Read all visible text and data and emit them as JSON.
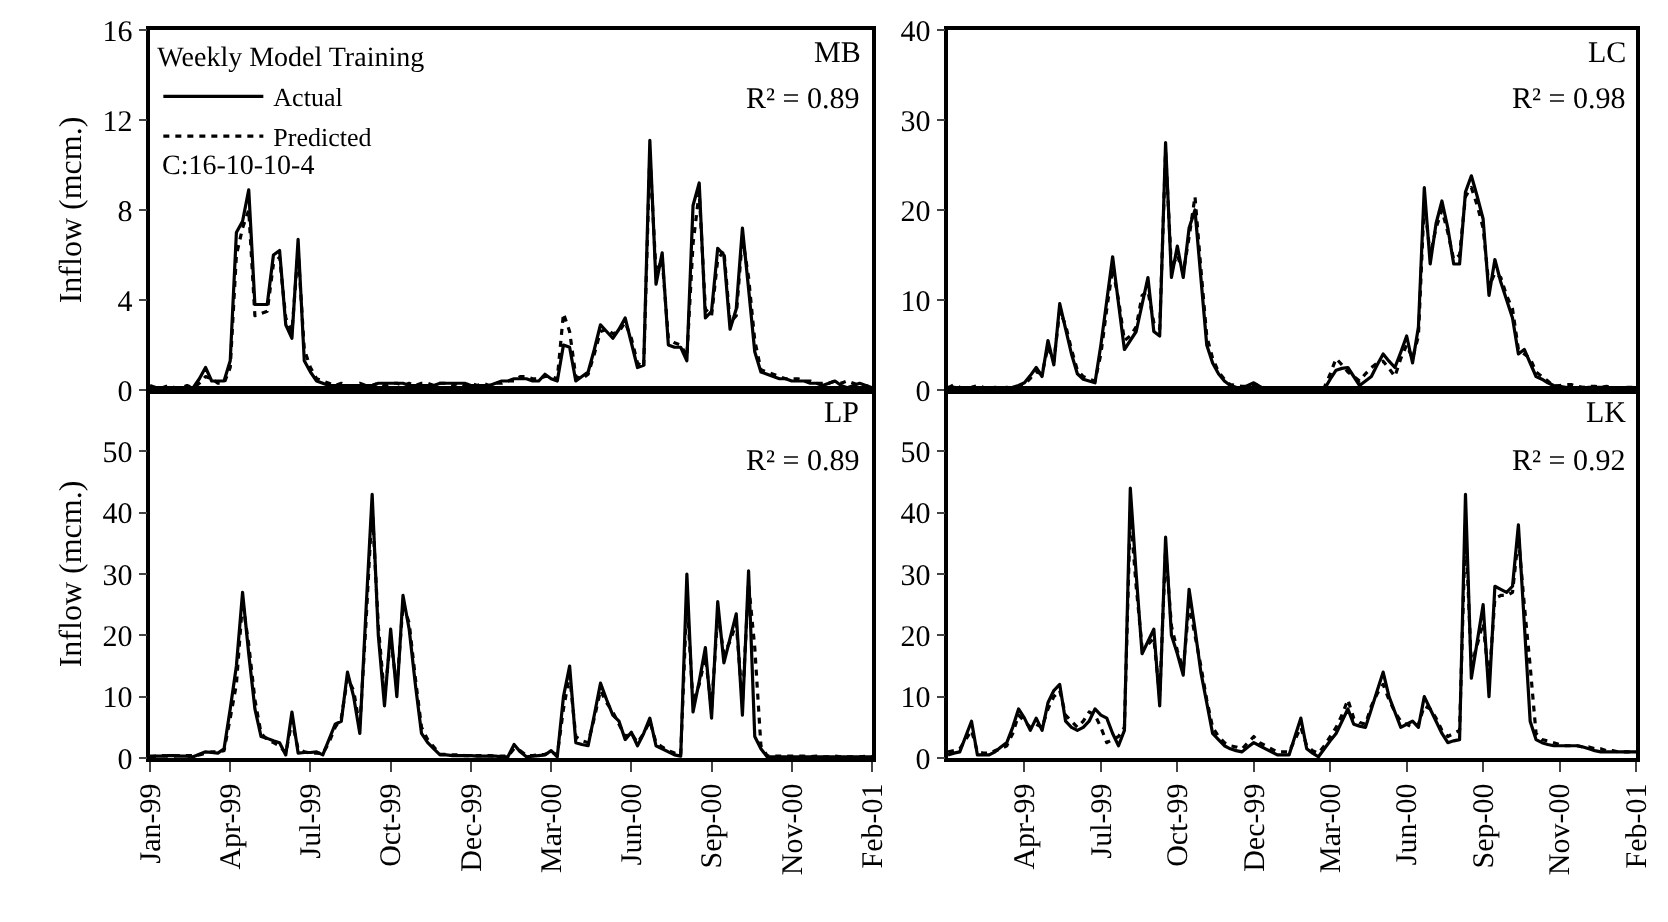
{
  "chart_data": [
    {
      "type": "line",
      "ylabel": "Inflow (mcm.)",
      "legend_title": "Weekly Model Training",
      "legend": "top left",
      "annotations": [
        "MB",
        "R² = 0.89",
        "C:16-10-10-4"
      ],
      "tick_labels": "y",
      "ylim": [
        0,
        16
      ],
      "yticks": [
        0,
        4,
        8,
        12,
        16
      ],
      "categories": [
        null,
        null,
        null,
        null,
        null,
        null,
        null,
        null,
        null,
        null,
        null,
        null,
        null,
        null,
        null,
        null,
        null,
        null,
        null,
        null,
        null,
        null,
        null,
        null,
        null,
        null,
        null,
        null,
        null,
        null,
        null,
        null,
        null,
        null,
        null,
        null,
        null,
        null,
        null,
        null,
        null,
        null,
        null,
        null,
        null,
        null,
        null,
        null,
        null,
        null,
        null,
        null,
        null,
        null,
        null,
        null,
        null,
        null,
        null,
        null,
        null,
        null,
        null,
        null,
        null,
        null,
        null,
        null,
        null,
        null,
        null,
        null,
        null,
        null,
        null,
        null,
        null,
        null,
        null,
        null,
        null,
        null,
        null,
        null,
        null,
        null,
        null,
        null,
        null,
        null,
        null,
        null,
        null,
        null,
        null,
        null,
        null,
        null,
        null,
        null,
        null,
        null,
        null,
        null,
        null,
        null,
        null,
        null,
        null,
        null,
        null,
        null,
        null,
        null,
        null,
        null,
        null,
        null
      ],
      "series": [
        {
          "name": "Actual",
          "color": "#000000",
          "line_style": "solid",
          "values": [
            0.1,
            0.1,
            0.1,
            0.1,
            0.1,
            0.1,
            0.1,
            0.1,
            0.5,
            1.0,
            0.4,
            0.4,
            0.4,
            1.3,
            7.0,
            7.5,
            8.9,
            3.8,
            3.8,
            3.8,
            6.0,
            6.2,
            2.9,
            2.3,
            6.7,
            1.3,
            0.8,
            0.4,
            0.3,
            0.2,
            0.2,
            0.2,
            0.2,
            0.2,
            0.2,
            0.2,
            0.2,
            0.3,
            0.3,
            0.3,
            0.3,
            0.3,
            0.2,
            0.2,
            0.2,
            0.2,
            0.2,
            0.3,
            0.3,
            0.3,
            0.3,
            0.3,
            0.2,
            0.2,
            0.2,
            0.2,
            0.3,
            0.4,
            0.4,
            0.5,
            0.5,
            0.5,
            0.4,
            0.4,
            0.7,
            0.5,
            0.4,
            2.0,
            1.9,
            0.4,
            0.6,
            0.8,
            1.8,
            2.9,
            2.6,
            2.3,
            2.7,
            3.2,
            2.1,
            1.0,
            1.1,
            11.1,
            4.7,
            6.1,
            2.0,
            1.9,
            1.9,
            1.3,
            8.2,
            9.2,
            3.2,
            3.5,
            6.3,
            6.0,
            2.7,
            3.6,
            7.2,
            4.5,
            1.7,
            0.8,
            0.7,
            0.6,
            0.5,
            0.5,
            0.4,
            0.4,
            0.4,
            0.3,
            0.3,
            0.2,
            0.3,
            0.4,
            0.2,
            0.1,
            0.2,
            0.3,
            0.2,
            0.1
          ]
        },
        {
          "name": "Predicted",
          "color": "#000000",
          "line_style": "dotted",
          "values": [
            0.2,
            0.1,
            0.1,
            0.2,
            0.1,
            0.1,
            0.2,
            0.1,
            0.3,
            0.6,
            0.5,
            0.3,
            0.3,
            1.0,
            6.0,
            7.2,
            8.0,
            3.3,
            3.4,
            3.5,
            5.6,
            5.9,
            3.2,
            2.6,
            6.2,
            1.8,
            1.0,
            0.5,
            0.4,
            0.3,
            0.2,
            0.3,
            0.2,
            0.2,
            0.3,
            0.2,
            0.2,
            0.3,
            0.2,
            0.3,
            0.3,
            0.2,
            0.3,
            0.2,
            0.3,
            0.3,
            0.2,
            0.3,
            0.3,
            0.2,
            0.3,
            0.2,
            0.3,
            0.2,
            0.3,
            0.2,
            0.3,
            0.3,
            0.4,
            0.4,
            0.6,
            0.6,
            0.5,
            0.5,
            0.6,
            0.6,
            0.5,
            3.4,
            2.6,
            0.6,
            0.5,
            0.7,
            1.6,
            2.6,
            2.7,
            2.5,
            2.6,
            3.0,
            2.3,
            1.2,
            1.0,
            10.5,
            5.2,
            5.8,
            2.3,
            2.1,
            2.0,
            1.5,
            6.5,
            8.8,
            3.6,
            3.3,
            5.8,
            6.2,
            3.0,
            3.3,
            6.8,
            5.0,
            2.2,
            0.9,
            0.8,
            0.7,
            0.6,
            0.5,
            0.5,
            0.5,
            0.4,
            0.4,
            0.3,
            0.3,
            0.3,
            0.4,
            0.3,
            0.4,
            0.3,
            0.2,
            0.2,
            0.1
          ]
        }
      ]
    },
    {
      "type": "line",
      "annotations": [
        "LC",
        "R² = 0.98"
      ],
      "tick_labels": "y",
      "ylim": [
        0,
        40
      ],
      "yticks": [
        0,
        10,
        20,
        30,
        40
      ],
      "categories": [
        null,
        null,
        null,
        null,
        null,
        null,
        null,
        null,
        null,
        null,
        null,
        null,
        null,
        null,
        null,
        null,
        null,
        null,
        null,
        null,
        null,
        null,
        null,
        null,
        null,
        null,
        null,
        null,
        null,
        null,
        null,
        null,
        null,
        null,
        null,
        null,
        null,
        null,
        null,
        null,
        null,
        null,
        null,
        null,
        null,
        null,
        null,
        null,
        null,
        null,
        null,
        null,
        null,
        null,
        null,
        null,
        null,
        null,
        null,
        null,
        null,
        null,
        null,
        null,
        null,
        null,
        null,
        null,
        null,
        null,
        null,
        null,
        null,
        null,
        null,
        null,
        null,
        null,
        null,
        null,
        null,
        null,
        null,
        null,
        null,
        null,
        null,
        null,
        null,
        null,
        null,
        null,
        null,
        null,
        null,
        null,
        null,
        null,
        null,
        null,
        null,
        null,
        null,
        null,
        null,
        null,
        null,
        null,
        null,
        null,
        null,
        null,
        null,
        null,
        null,
        null,
        null,
        null
      ],
      "series": [
        {
          "color": "#000000",
          "line_style": "solid",
          "values": [
            0.3,
            0.3,
            0.2,
            0.2,
            0.2,
            0.2,
            0.2,
            0.2,
            0.2,
            0.2,
            0.2,
            0.3,
            0.5,
            0.8,
            1.6,
            2.5,
            1.5,
            5.5,
            2.8,
            9.6,
            6.8,
            4.0,
            1.8,
            1.2,
            1.0,
            0.8,
            5.0,
            9.9,
            14.8,
            9.6,
            4.5,
            5.5,
            6.5,
            9.5,
            12.5,
            6.5,
            6.0,
            27.5,
            12.5,
            16.0,
            12.5,
            18.0,
            20.0,
            12.5,
            5.0,
            3.0,
            1.8,
            1.0,
            0.5,
            0.3,
            0.2,
            0.5,
            0.8,
            0.4,
            0.1,
            0.1,
            0.1,
            0.1,
            0.1,
            0.1,
            0.1,
            0.1,
            0.1,
            0.1,
            0.1,
            1.2,
            2.2,
            2.4,
            2.5,
            1.5,
            0.5,
            1.0,
            1.5,
            2.8,
            4.0,
            3.2,
            2.5,
            4.2,
            6.0,
            3.0,
            7.0,
            22.5,
            14.0,
            18.5,
            21.0,
            18.0,
            14.0,
            14.0,
            22.0,
            23.8,
            21.5,
            19.0,
            10.5,
            14.5,
            12.0,
            10.0,
            8.0,
            4.0,
            4.5,
            3.0,
            1.5,
            1.2,
            0.8,
            0.5,
            0.4,
            0.3,
            0.2,
            0.2,
            0.2,
            0.3,
            0.3,
            0.3,
            0.3,
            0.2,
            0.2,
            0.2,
            0.2,
            0.2
          ]
        },
        {
          "color": "#000000",
          "line_style": "dotted",
          "values": [
            0.2,
            0.6,
            0.3,
            0.2,
            0.3,
            0.5,
            0.3,
            0.2,
            0.3,
            0.2,
            0.3,
            0.2,
            0.4,
            0.6,
            1.3,
            2.0,
            1.8,
            4.8,
            3.2,
            8.8,
            7.2,
            4.5,
            2.2,
            1.5,
            1.2,
            1.0,
            4.0,
            9.0,
            13.5,
            10.0,
            5.5,
            6.0,
            7.0,
            10.5,
            11.0,
            7.5,
            6.8,
            26.5,
            13.5,
            15.0,
            13.0,
            17.0,
            21.5,
            13.5,
            6.0,
            3.5,
            2.0,
            1.2,
            0.6,
            0.5,
            0.4,
            0.4,
            0.6,
            0.5,
            0.2,
            0.2,
            0.1,
            0.2,
            0.1,
            0.2,
            0.2,
            0.1,
            0.2,
            0.1,
            0.3,
            1.8,
            3.5,
            2.8,
            2.0,
            1.5,
            1.0,
            1.8,
            2.5,
            3.0,
            3.2,
            2.4,
            1.5,
            3.5,
            5.0,
            3.5,
            6.0,
            21.0,
            15.0,
            18.0,
            20.0,
            17.5,
            14.5,
            15.0,
            21.5,
            22.5,
            20.5,
            18.0,
            11.5,
            13.0,
            12.5,
            10.5,
            9.0,
            4.5,
            4.0,
            3.5,
            2.0,
            1.5,
            1.0,
            0.4,
            0.5,
            0.6,
            0.6,
            0.4,
            0.3,
            0.4,
            0.4,
            0.3,
            0.4,
            0.3,
            0.2,
            0.3,
            0.3,
            0.3
          ]
        }
      ]
    },
    {
      "type": "line",
      "ylabel": "Inflow (mcm.)",
      "annotations": [
        "LP",
        "R² = 0.89"
      ],
      "ylim": [
        0,
        60
      ],
      "yticks": [
        0,
        10,
        20,
        30,
        40,
        50
      ],
      "categories": [
        "Jan-99",
        null,
        null,
        null,
        null,
        null,
        null,
        null,
        null,
        null,
        null,
        null,
        null,
        "Apr-99",
        null,
        null,
        null,
        null,
        null,
        null,
        null,
        null,
        null,
        null,
        null,
        null,
        "Jul-99",
        null,
        null,
        null,
        null,
        null,
        null,
        null,
        null,
        null,
        null,
        null,
        null,
        "Oct-99",
        null,
        null,
        null,
        null,
        null,
        null,
        null,
        null,
        null,
        null,
        null,
        null,
        "Dec-99",
        null,
        null,
        null,
        null,
        null,
        null,
        null,
        null,
        null,
        null,
        null,
        null,
        "Mar-00",
        null,
        null,
        null,
        null,
        null,
        null,
        null,
        null,
        null,
        null,
        null,
        null,
        "Jun-00",
        null,
        null,
        null,
        null,
        null,
        null,
        null,
        null,
        null,
        null,
        null,
        null,
        "Sep-00",
        null,
        null,
        null,
        null,
        null,
        null,
        null,
        null,
        null,
        null,
        null,
        null,
        "Nov-00",
        null,
        null,
        null,
        null,
        null,
        null,
        null,
        null,
        null,
        null,
        null,
        null,
        "Feb-01"
      ],
      "series": [
        {
          "color": "#000000",
          "line_style": "solid",
          "values": [
            0.2,
            0.3,
            0.3,
            0.4,
            0.4,
            0.3,
            0.3,
            0.2,
            0.6,
            1.0,
            0.9,
            0.8,
            1.5,
            8.0,
            15.0,
            27.0,
            17.0,
            8.0,
            3.5,
            3.2,
            2.8,
            2.5,
            0.5,
            7.5,
            0.8,
            0.9,
            0.9,
            1.0,
            0.5,
            3.0,
            5.5,
            6.0,
            14.0,
            10.0,
            4.0,
            24.0,
            43.0,
            20.0,
            8.5,
            21.0,
            10.0,
            26.5,
            21.0,
            12.0,
            4.0,
            2.5,
            1.5,
            0.5,
            0.5,
            0.4,
            0.4,
            0.4,
            0.4,
            0.3,
            0.3,
            0.3,
            0.3,
            0.2,
            0.2,
            2.2,
            1.0,
            0.2,
            0.3,
            0.4,
            0.5,
            1.2,
            0.2,
            10.0,
            15.0,
            2.5,
            2.2,
            2.0,
            7.0,
            12.2,
            9.5,
            7.0,
            6.0,
            3.0,
            4.2,
            2.0,
            4.0,
            6.5,
            2.0,
            1.5,
            1.0,
            0.5,
            0.3,
            30.0,
            7.5,
            12.5,
            18.0,
            6.5,
            25.5,
            15.5,
            19.5,
            23.5,
            7.0,
            30.5,
            3.5,
            1.5,
            0.2,
            0.2,
            0.2,
            0.2,
            0.2,
            0.2,
            0.2,
            0.2,
            0.2,
            0.2,
            0.2,
            0.2,
            0.2,
            0.2,
            0.2,
            0.2,
            0.2,
            0.2
          ]
        },
        {
          "color": "#000000",
          "line_style": "dotted",
          "values": [
            0.3,
            0.3,
            0.4,
            0.3,
            0.3,
            0.4,
            0.4,
            0.4,
            0.5,
            0.8,
            1.0,
            1.0,
            1.2,
            6.5,
            12.0,
            25.5,
            18.5,
            9.5,
            4.0,
            3.0,
            2.5,
            2.0,
            0.8,
            6.0,
            1.5,
            1.0,
            0.8,
            0.8,
            0.7,
            2.5,
            5.0,
            6.5,
            13.0,
            11.0,
            5.0,
            22.0,
            41.0,
            21.5,
            10.0,
            19.5,
            11.5,
            25.0,
            22.0,
            13.0,
            5.0,
            3.0,
            1.8,
            0.6,
            0.6,
            0.5,
            0.5,
            0.4,
            0.4,
            0.4,
            0.4,
            0.4,
            0.3,
            0.3,
            0.3,
            1.5,
            1.2,
            0.4,
            0.4,
            0.5,
            0.6,
            1.0,
            0.5,
            8.0,
            13.5,
            3.5,
            2.8,
            2.5,
            6.5,
            11.0,
            9.0,
            7.5,
            5.5,
            3.5,
            4.0,
            2.5,
            4.0,
            6.0,
            2.5,
            1.8,
            1.2,
            0.8,
            0.5,
            26.0,
            9.0,
            12.0,
            16.5,
            8.0,
            23.5,
            17.0,
            19.0,
            22.0,
            9.0,
            28.5,
            18.0,
            2.0,
            0.4,
            0.3,
            0.3,
            0.3,
            0.3,
            0.3,
            0.3,
            0.2,
            0.3,
            0.2,
            0.2,
            0.3,
            0.2,
            0.2,
            0.2,
            0.2,
            0.3,
            0.2
          ]
        }
      ]
    },
    {
      "type": "line",
      "annotations": [
        "LK",
        "R² = 0.92"
      ],
      "ylim": [
        0,
        60
      ],
      "yticks": [
        0,
        10,
        20,
        30,
        40,
        50
      ],
      "categories": [
        null,
        null,
        null,
        null,
        null,
        null,
        null,
        null,
        null,
        null,
        null,
        null,
        null,
        "Apr-99",
        null,
        null,
        null,
        null,
        null,
        null,
        null,
        null,
        null,
        null,
        null,
        null,
        "Jul-99",
        null,
        null,
        null,
        null,
        null,
        null,
        null,
        null,
        null,
        null,
        null,
        null,
        "Oct-99",
        null,
        null,
        null,
        null,
        null,
        null,
        null,
        null,
        null,
        null,
        null,
        null,
        "Dec-99",
        null,
        null,
        null,
        null,
        null,
        null,
        null,
        null,
        null,
        null,
        null,
        null,
        "Mar-00",
        null,
        null,
        null,
        null,
        null,
        null,
        null,
        null,
        null,
        null,
        null,
        null,
        "Jun-00",
        null,
        null,
        null,
        null,
        null,
        null,
        null,
        null,
        null,
        null,
        null,
        null,
        "Sep-00",
        null,
        null,
        null,
        null,
        null,
        null,
        null,
        null,
        null,
        null,
        null,
        null,
        "Nov-00",
        null,
        null,
        null,
        null,
        null,
        null,
        null,
        null,
        null,
        null,
        null,
        null,
        "Feb-01"
      ],
      "series": [
        {
          "color": "#000000",
          "line_style": "solid",
          "values": [
            0.5,
            0.8,
            1.0,
            3.5,
            6.0,
            0.5,
            0.5,
            0.5,
            1.0,
            1.8,
            2.5,
            5.0,
            8.0,
            6.5,
            4.5,
            6.5,
            4.5,
            9.0,
            11.0,
            12.0,
            6.0,
            5.0,
            4.5,
            5.0,
            6.0,
            8.0,
            7.0,
            6.5,
            4.0,
            2.0,
            4.5,
            44.0,
            30.0,
            17.0,
            19.0,
            21.0,
            8.5,
            36.0,
            20.0,
            17.0,
            13.5,
            27.5,
            21.0,
            14.0,
            9.0,
            4.0,
            3.0,
            2.0,
            1.5,
            1.2,
            1.0,
            1.8,
            2.5,
            2.0,
            1.5,
            1.0,
            0.5,
            0.5,
            0.5,
            3.5,
            6.5,
            1.5,
            0.8,
            0.2,
            1.5,
            2.8,
            4.0,
            6.0,
            8.0,
            5.5,
            5.2,
            5.0,
            8.0,
            11.0,
            14.0,
            10.0,
            7.5,
            5.0,
            5.5,
            6.0,
            5.0,
            10.0,
            8.0,
            6.0,
            4.0,
            2.5,
            2.8,
            3.0,
            43.0,
            13.0,
            19.0,
            25.0,
            10.0,
            28.0,
            27.5,
            27.0,
            28.0,
            38.0,
            22.0,
            6.0,
            3.0,
            2.5,
            2.2,
            2.0,
            2.0,
            2.0,
            2.0,
            2.0,
            1.8,
            1.5,
            1.2,
            1.0,
            1.0,
            1.0,
            1.0,
            1.0,
            1.0,
            1.0
          ]
        },
        {
          "color": "#000000",
          "line_style": "dotted",
          "values": [
            1.0,
            1.2,
            1.5,
            3.0,
            4.5,
            1.0,
            0.8,
            0.8,
            1.2,
            1.5,
            2.0,
            4.0,
            7.0,
            6.0,
            5.0,
            5.5,
            5.0,
            8.0,
            10.0,
            11.0,
            7.0,
            6.0,
            5.0,
            6.0,
            7.5,
            7.0,
            5.0,
            2.5,
            3.0,
            3.5,
            5.0,
            40.0,
            28.0,
            18.0,
            18.5,
            19.5,
            10.0,
            34.0,
            21.5,
            17.5,
            14.5,
            25.0,
            20.0,
            15.0,
            9.5,
            5.0,
            3.5,
            2.5,
            2.0,
            1.8,
            1.5,
            2.5,
            3.5,
            2.5,
            2.0,
            1.5,
            1.0,
            1.0,
            1.0,
            3.0,
            5.0,
            2.0,
            1.2,
            0.8,
            2.0,
            3.5,
            5.0,
            7.0,
            9.5,
            6.5,
            5.8,
            5.5,
            8.5,
            10.5,
            12.0,
            9.5,
            7.5,
            6.0,
            5.5,
            5.0,
            5.5,
            8.5,
            8.0,
            6.5,
            4.5,
            3.5,
            4.0,
            4.5,
            38.0,
            15.0,
            18.5,
            22.0,
            12.5,
            26.0,
            26.5,
            26.5,
            27.0,
            36.0,
            25.0,
            15.0,
            4.0,
            3.0,
            2.8,
            2.5,
            2.2,
            2.0,
            2.0,
            2.0,
            1.8,
            1.8,
            1.5,
            1.5,
            1.2,
            1.2,
            1.0,
            1.0,
            1.0,
            1.0
          ]
        }
      ]
    }
  ]
}
